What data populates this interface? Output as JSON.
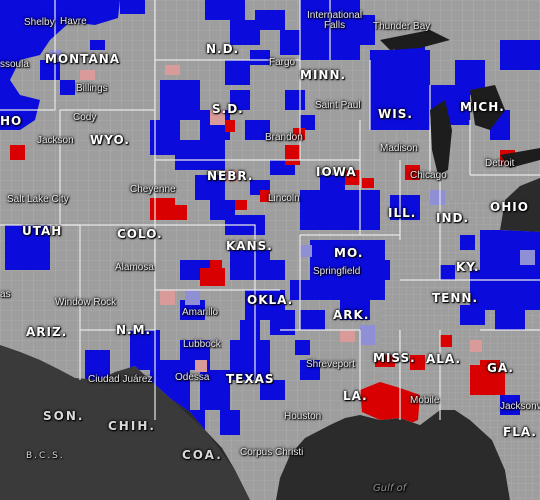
{
  "map": {
    "colors": {
      "ocean": "#2b2b2b",
      "foreign_land": "#3a3a3a",
      "county_gray": "#9e9e9e",
      "county_border": "#b8b8b8",
      "state_border": "#e8e8e8",
      "blue": "#0b0bdc",
      "light_blue": "#8f8fd6",
      "red": "#d80000",
      "pink": "#d99a9a"
    },
    "state_labels": {
      "montana": "MONTANA",
      "nd": "N.D.",
      "minn": "MINN.",
      "mich": "MICH.",
      "sd": "S.D.",
      "wis": "WIS.",
      "wyo": "WYO.",
      "id": "HO",
      "iowa": "IOWA",
      "nebr": "NEBR.",
      "ohio": "OHIO",
      "ill": "ILL.",
      "ind": "IND.",
      "utah": "UTAH",
      "colo": "COLO.",
      "kans": "KANS.",
      "mo": "MO.",
      "ky": "KY.",
      "okla": "OKLA.",
      "tenn": "TENN.",
      "ark": "ARK.",
      "ariz": "ARIZ.",
      "nm": "N.M.",
      "miss": "MISS.",
      "ala": "ALA.",
      "ga": "GA.",
      "texas": "TEXAS",
      "la": "LA.",
      "fla": "FLA."
    },
    "city_labels": {
      "shelby": "Shelby",
      "havre": "Havre",
      "missoula": "ssoula",
      "billings": "Billings",
      "fargo": "Fargo",
      "intl_falls": "International\nFalls",
      "thunder_bay": "Thunder Bay",
      "cody": "Cody",
      "saint_paul": "Saint Paul",
      "jackson_wy": "Jackson",
      "brandon": "Brandon",
      "madison": "Madison",
      "detroit": "Detroit",
      "cheyenne": "Cheyenne",
      "salt_lake": "Salt Lake City",
      "lincoln": "Lincoln",
      "chicago": "Chicago",
      "springfield": "Springfield",
      "alamosa": "Alamosa",
      "window_rock": "Window Rock",
      "amarillo": "Amarillo",
      "lubbock": "Lubbock",
      "shreveport": "Shreveport",
      "ciudad_juarez": "Ciudad Juárez",
      "odessa": "Odessa",
      "mobile": "Mobile",
      "houston": "Houston",
      "jacksonville": "Jacksonv",
      "corpus_christi": "Corpus Christi",
      "vegas": "as"
    },
    "country_labels": {
      "son": "SON.",
      "chih": "CHIH.",
      "coa": "COA.",
      "bcs": "B.C.S."
    },
    "water_labels": {
      "gulf": "Gulf of"
    }
  }
}
